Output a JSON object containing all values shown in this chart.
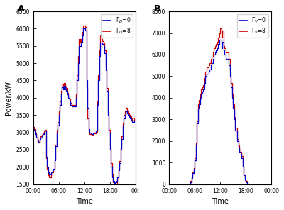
{
  "panel_A": {
    "ylabel": "Power/kW",
    "xlabel": "Time",
    "label": "A",
    "ylim": [
      1500,
      6500
    ],
    "yticks": [
      1500,
      2000,
      2500,
      3000,
      3500,
      4000,
      4500,
      5000,
      5500,
      6000,
      6500
    ],
    "xtick_labels_A": [
      "00:00",
      "06:00",
      "12:00",
      "18:00",
      "00:"
    ],
    "color_blue": "#0000cc",
    "color_red": "#cc0000"
  },
  "panel_B": {
    "ylabel": "",
    "xlabel": "Time",
    "label": "B",
    "ylim": [
      0,
      8000
    ],
    "yticks": [
      0,
      1000,
      2000,
      3000,
      4000,
      5000,
      6000,
      7000,
      8000
    ],
    "xtick_labels_B": [
      "00:00",
      "06:00",
      "12:00",
      "18:00",
      "00:00"
    ],
    "color_blue": "#0000cc",
    "color_red": "#cc0000"
  },
  "figsize": [
    4.0,
    2.96
  ],
  "dpi": 100
}
